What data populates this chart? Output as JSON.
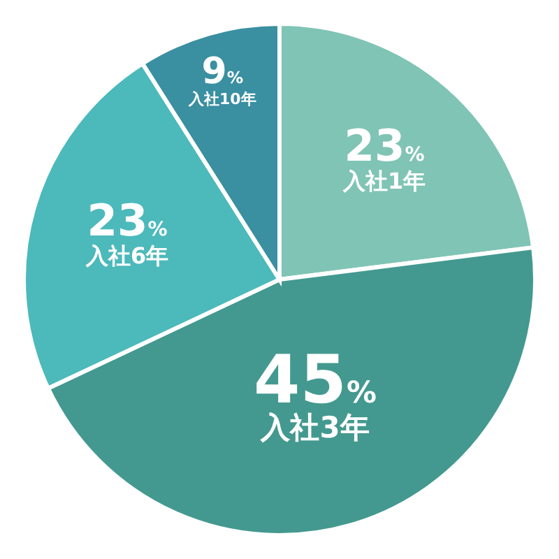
{
  "chart_data": {
    "type": "pie",
    "categories": [
      "入社1年",
      "入社3年",
      "入社6年",
      "入社10年"
    ],
    "values": [
      23,
      45,
      23,
      9
    ],
    "value_labels": [
      "23%",
      "45%",
      "23%",
      "9%"
    ],
    "colors": [
      "#80c4b5",
      "#43998f",
      "#4cb9bb",
      "#3a8fa1"
    ]
  }
}
